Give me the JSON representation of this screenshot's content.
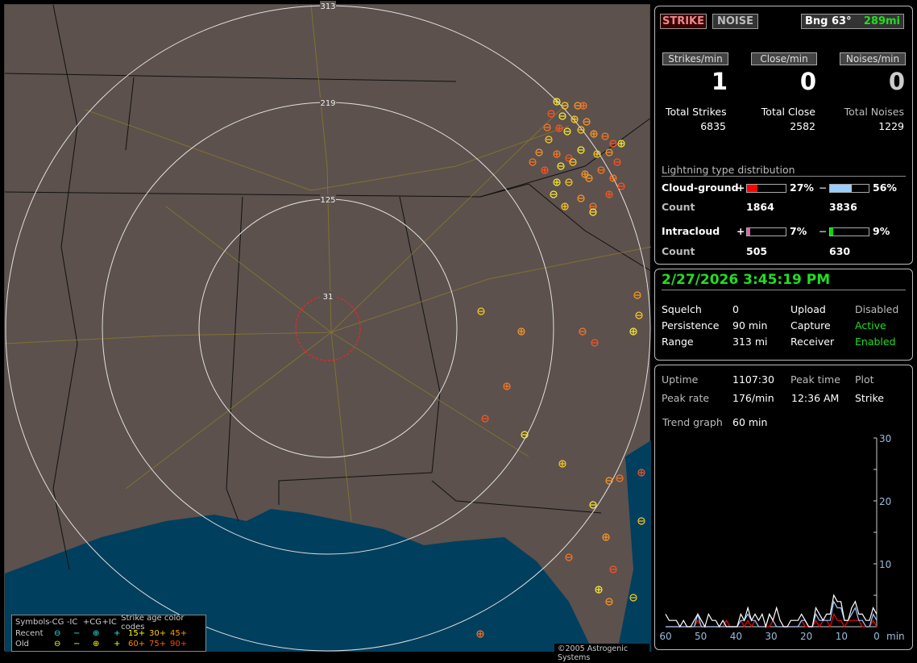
{
  "map": {
    "range_labels": [
      "31",
      "125",
      "219",
      "313"
    ],
    "copyright": "©2005 Astrogenic Systems",
    "colors": {
      "land": "#5c514d",
      "water": "#013f5e",
      "rings": "#e0e0e0",
      "close_ring": "#ff2020"
    },
    "legend": {
      "headers": [
        "Symbols",
        "-CG",
        "-IC",
        "+CG",
        "+IC",
        "Strike age color codes"
      ],
      "recent_label": "Recent",
      "old_label": "Old",
      "recent_symbols": [
        "⊖",
        "−",
        "⊕",
        "+"
      ],
      "old_symbols": [
        "⊖",
        "−",
        "⊕",
        "+"
      ],
      "recent_ages": [
        "15+",
        "30+",
        "45+"
      ],
      "old_ages": [
        "60+",
        "75+",
        "90+"
      ]
    }
  },
  "status": {
    "strike_button": "STRIKE",
    "noise_button": "NOISE",
    "bearing": "Bng 63°",
    "distance": "289mi",
    "rates": [
      {
        "label": "Strikes/min",
        "value": "1"
      },
      {
        "label": "Close/min",
        "value": "0"
      },
      {
        "label": "Noises/min",
        "value": "0"
      }
    ],
    "totals": [
      {
        "label": "Total Strikes",
        "value": "6835"
      },
      {
        "label": "Total Close",
        "value": "2582"
      },
      {
        "label": "Total Noises",
        "value": "1229"
      }
    ],
    "distribution": {
      "title": "Lightning type distribution",
      "cg_label": "Cloud-ground",
      "ic_label": "Intracloud",
      "count_label": "Count",
      "cg_pos": {
        "sign": "+",
        "percent": 27,
        "percent_text": "27%",
        "count": "1864",
        "color": "#ff0000"
      },
      "cg_neg": {
        "sign": "−",
        "percent": 56,
        "percent_text": "56%",
        "count": "3836",
        "color": "#99ccff"
      },
      "ic_pos": {
        "sign": "+",
        "percent": 7,
        "percent_text": "7%",
        "count": "505",
        "color": "#e060a0"
      },
      "ic_neg": {
        "sign": "−",
        "percent": 9,
        "percent_text": "9%",
        "count": "630",
        "color": "#00dd00"
      }
    }
  },
  "info": {
    "datetime": "2/27/2026 3:45:19 PM",
    "rows": [
      {
        "k": "Squelch",
        "v": "0",
        "k2": "Upload",
        "v2": "Disabled"
      },
      {
        "k": "Persistence",
        "v": "90 min",
        "k2": "Capture",
        "v2": "Active"
      },
      {
        "k": "Range",
        "v": "313 mi",
        "k2": "Receiver",
        "v2": "Enabled"
      }
    ]
  },
  "stats": {
    "uptime_label": "Uptime",
    "uptime": "1107:30",
    "peak_time_label": "Peak time",
    "plot_label": "Plot",
    "peak_rate_label": "Peak rate",
    "peak_rate": "176/min",
    "peak_time": "12:36 AM",
    "plot": "Strike",
    "trend_label": "Trend graph",
    "trend_value": "60 min"
  },
  "chart_data": {
    "type": "line",
    "xlabel": "min",
    "xlim": [
      60,
      0
    ],
    "ylim": [
      0,
      30
    ],
    "x_ticks": [
      "60",
      "50",
      "40",
      "30",
      "20",
      "10",
      "0"
    ],
    "y_ticks": [
      "10",
      "20",
      "30"
    ],
    "series": [
      {
        "color": "#ffffff",
        "values": [
          2,
          1,
          1,
          1,
          0,
          1,
          0,
          0,
          1,
          2,
          1,
          0,
          2,
          1,
          1,
          0,
          1,
          0,
          0,
          0,
          0,
          2,
          1,
          3,
          1,
          2,
          1,
          2,
          0,
          2,
          1,
          3,
          1,
          0,
          0,
          1,
          1,
          1,
          2,
          1,
          0,
          0,
          3,
          2,
          1,
          2,
          2,
          5,
          4,
          4,
          1,
          1,
          3,
          4,
          2,
          2,
          1,
          1,
          3,
          2
        ]
      },
      {
        "color": "#99ccff",
        "values": [
          0,
          0,
          0,
          0,
          0,
          0,
          0,
          0,
          0,
          2,
          0,
          0,
          0,
          0,
          0,
          0,
          0,
          0,
          0,
          0,
          0,
          1,
          1,
          2,
          1,
          1,
          0,
          0,
          0,
          2,
          1,
          0,
          0,
          0,
          0,
          0,
          0,
          0,
          1,
          1,
          0,
          0,
          2,
          1,
          1,
          1,
          1,
          4,
          3,
          3,
          1,
          1,
          2,
          3,
          1,
          1,
          0,
          0,
          2,
          1
        ]
      },
      {
        "color": "#ff0000",
        "values": [
          0,
          0,
          0,
          0,
          0,
          0,
          0,
          0,
          0,
          1,
          0,
          0,
          0,
          0,
          0,
          0,
          0,
          1,
          0,
          0,
          0,
          1,
          0,
          1,
          0,
          1,
          0,
          0,
          0,
          0,
          1,
          0,
          0,
          0,
          0,
          0,
          0,
          0,
          1,
          0,
          0,
          0,
          1,
          0,
          1,
          1,
          0,
          2,
          1,
          1,
          0,
          1,
          1,
          1,
          1,
          0,
          0,
          0,
          1,
          0
        ]
      }
    ]
  }
}
